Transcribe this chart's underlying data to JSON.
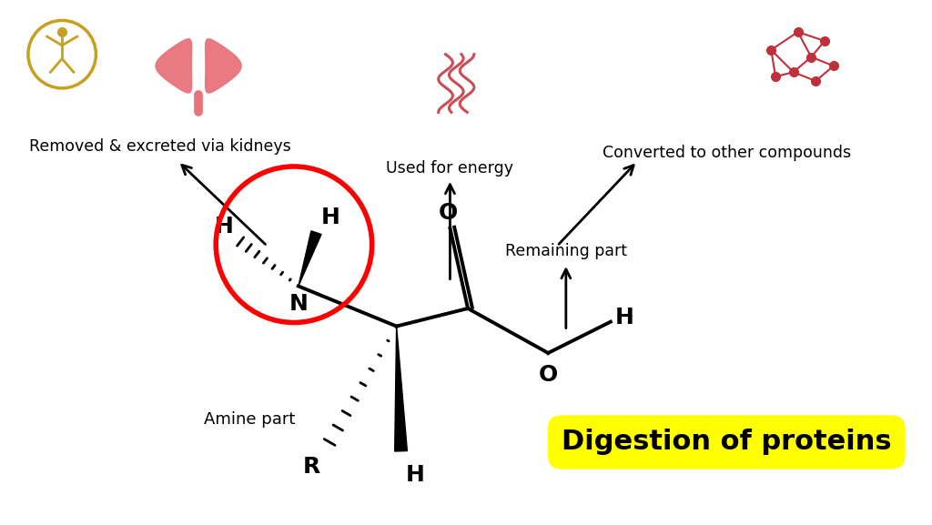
{
  "title": "Digestion of proteins",
  "title_bg": "#FFFF00",
  "bg_color": "#FFFFFF",
  "label_kidney": "Removed & excreted via kidneys",
  "label_energy": "Used for energy",
  "label_compounds": "Converted to other compounds",
  "label_remaining": "Remaining part",
  "label_amine": "Amine part",
  "kidney_color": "#E8737A",
  "wave_color": "#C0303A",
  "mol_color": "#C0303A",
  "logo_color": "#C8A020",
  "arrow_color": "black",
  "ellipse_color": "red",
  "bond_color": "black",
  "text_color": "black"
}
